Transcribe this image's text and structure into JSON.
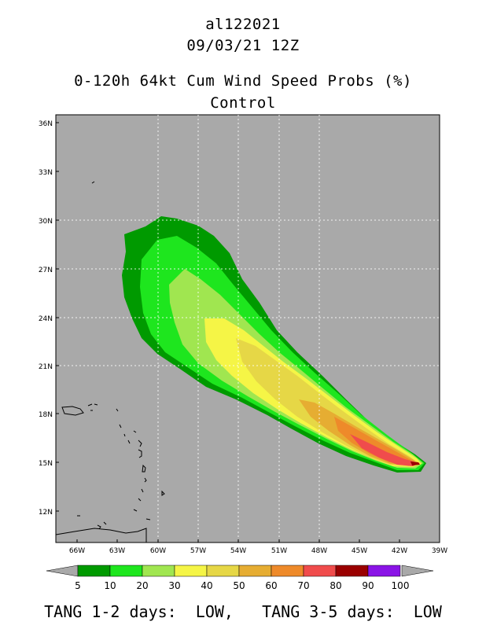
{
  "header": {
    "storm_id": "al122021",
    "datetime": "09/03/21 12Z",
    "product": "0-120h 64kt Cum Wind Speed Probs (%)",
    "member": "Control"
  },
  "map": {
    "lat_labels": [
      "36N",
      "33N",
      "30N",
      "27N",
      "24N",
      "21N",
      "18N",
      "15N",
      "12N"
    ],
    "lon_labels": [
      "66W",
      "63W",
      "60W",
      "57W",
      "54W",
      "51W",
      "48W",
      "45W",
      "42W",
      "39W"
    ],
    "background_color": "#a9a9a9"
  },
  "colorbar": {
    "labels": [
      "5",
      "10",
      "20",
      "30",
      "40",
      "50",
      "60",
      "70",
      "80",
      "90",
      "100"
    ],
    "colors": [
      "#009a00",
      "#1ee61e",
      "#a0e650",
      "#f5f546",
      "#e6d746",
      "#e6ad32",
      "#ee8a2a",
      "#f04c4c",
      "#9a0000",
      "#8a14e6"
    ]
  },
  "footer": {
    "text": "TANG 1-2 days:  LOW,   TANG 3-5 days:  LOW"
  }
}
